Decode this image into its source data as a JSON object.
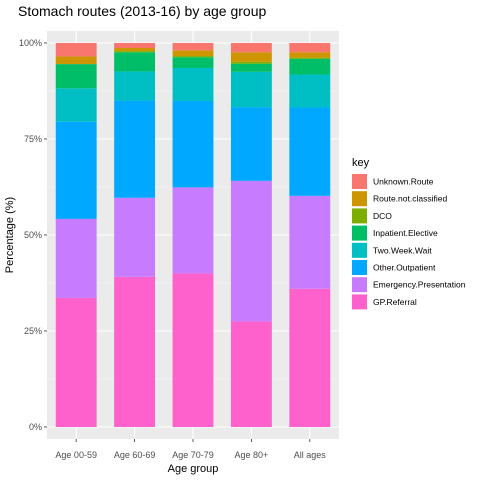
{
  "chart_data": {
    "type": "bar",
    "stacked": true,
    "title": "Stomach routes (2013-16) by age group",
    "xlabel": "Age group",
    "ylabel": "Percentage (%)",
    "ylim": [
      0,
      100
    ],
    "yticks": [
      0,
      25,
      50,
      75,
      100
    ],
    "ytick_labels": [
      "0%",
      "25%",
      "50%",
      "75%",
      "100%"
    ],
    "categories": [
      "Age 00-59",
      "Age 60-69",
      "Age 70-79",
      "Age 80+",
      "All ages"
    ],
    "legend": {
      "title": "key",
      "position": "right"
    },
    "grid": true,
    "series": [
      {
        "name": "GP.Referral",
        "color": "#FF61CC",
        "values": [
          33.6,
          39.1,
          40.0,
          27.5,
          36.0
        ]
      },
      {
        "name": "Emergency.Presentation",
        "color": "#C77CFF",
        "values": [
          20.6,
          20.6,
          22.4,
          36.6,
          24.2
        ]
      },
      {
        "name": "Other.Outpatient",
        "color": "#00A9FF",
        "values": [
          25.3,
          25.3,
          22.5,
          19.2,
          23.0
        ]
      },
      {
        "name": "Two.Week.Wait",
        "color": "#00BFC4",
        "values": [
          8.7,
          7.6,
          8.6,
          9.2,
          8.6
        ]
      },
      {
        "name": "Inpatient.Elective",
        "color": "#00BE67",
        "values": [
          6.3,
          5.0,
          2.8,
          2.1,
          4.1
        ]
      },
      {
        "name": "DCO",
        "color": "#7CAE00",
        "values": [
          0.0,
          0.3,
          0.3,
          0.5,
          0.3
        ]
      },
      {
        "name": "Route.not.classified",
        "color": "#CD9600",
        "values": [
          2.0,
          0.8,
          1.5,
          2.5,
          1.4
        ]
      },
      {
        "name": "Unknown.Route",
        "color": "#F8766D",
        "values": [
          3.5,
          1.3,
          1.9,
          2.4,
          2.4
        ]
      }
    ]
  }
}
